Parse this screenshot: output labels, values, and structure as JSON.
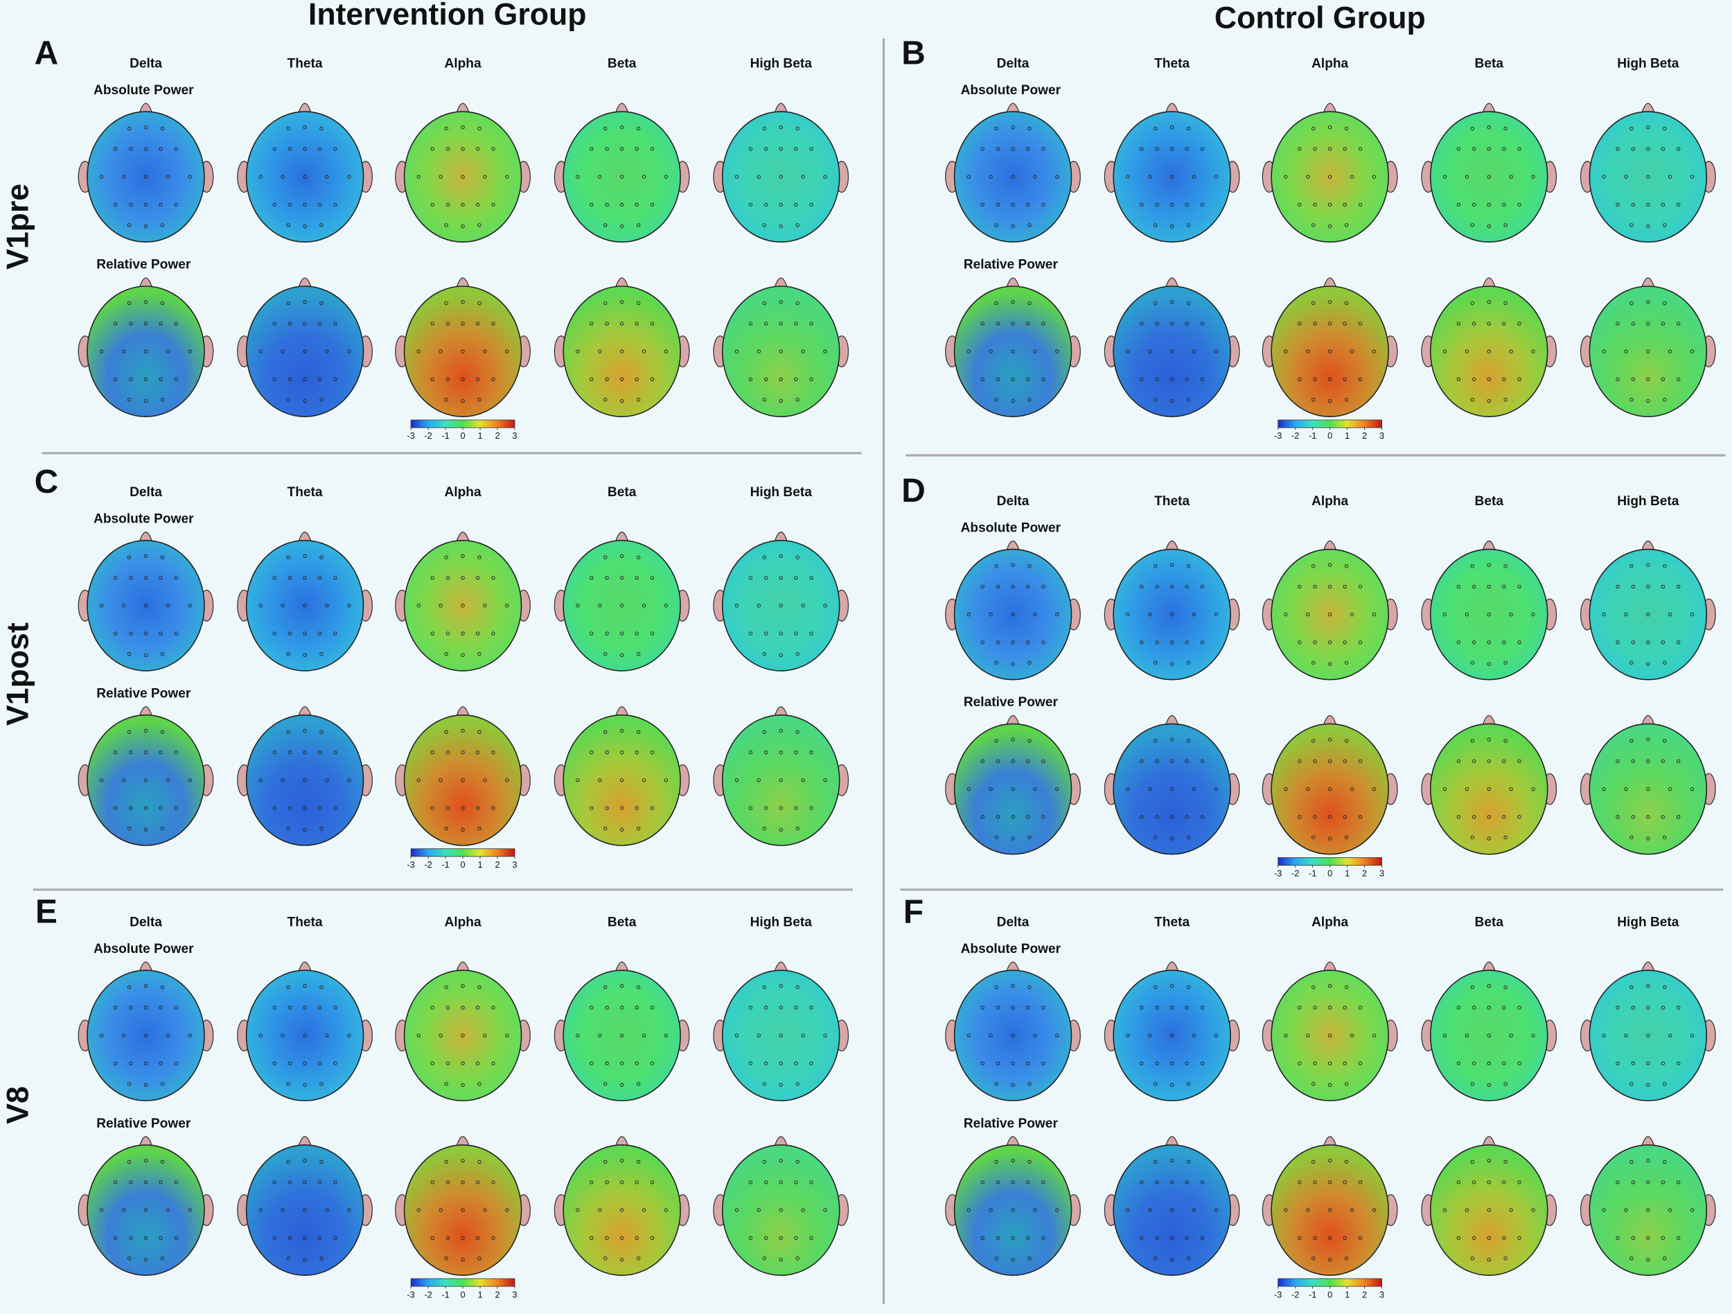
{
  "groups": [
    "Intervention Group",
    "Control Group"
  ],
  "rows": [
    "V1pre",
    "V1post",
    "V8"
  ],
  "panels": [
    {
      "letter": "A"
    },
    {
      "letter": "B"
    },
    {
      "letter": "C"
    },
    {
      "letter": "D"
    },
    {
      "letter": "E"
    },
    {
      "letter": "F"
    }
  ],
  "bands": [
    "Delta",
    "Theta",
    "Alpha",
    "Beta",
    "High Beta"
  ],
  "power_types": [
    "Absolute Power",
    "Relative Power"
  ],
  "colorbar": {
    "ticks": [
      -3,
      -2,
      -1,
      0,
      1,
      2,
      3
    ]
  }
}
